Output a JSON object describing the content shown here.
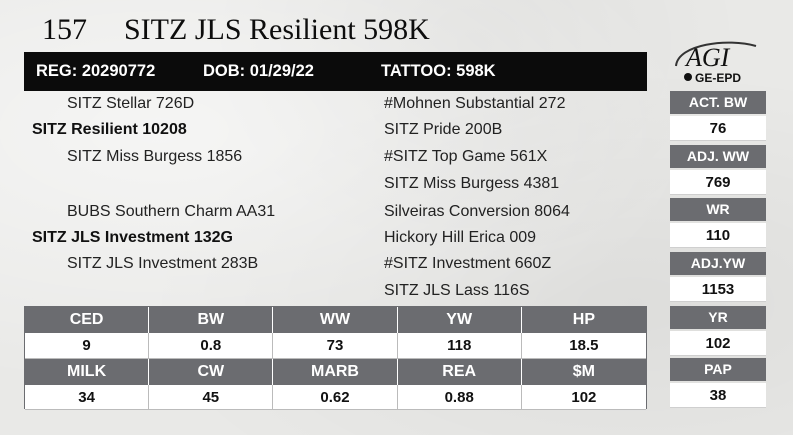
{
  "lot": {
    "number": "157",
    "name": "SITZ JLS Resilient 598K"
  },
  "registration": {
    "reg": "REG: 20290772",
    "dob": "DOB: 01/29/22",
    "tattoo": "TATTOO: 598K"
  },
  "logo": {
    "text_main": "AGI",
    "text_sub": "GE-EPD"
  },
  "pedigree": {
    "sire_sire": "SITZ Stellar 726D",
    "sire": "SITZ Resilient 10208",
    "sire_dam": "SITZ Miss Burgess 1856",
    "dam_sire": "BUBS Southern Charm AA31",
    "dam": "SITZ JLS Investment 132G",
    "dam_dam": "SITZ JLS Investment 283B",
    "right": [
      "#Mohnen Substantial 272",
      "SITZ Pride 200B",
      "#SITZ Top Game 561X",
      "SITZ Miss Burgess 4381",
      "Silveiras Conversion 8064",
      "Hickory Hill Erica 009",
      "#SITZ Investment 660Z",
      "SITZ JLS Lass 116S"
    ]
  },
  "performance": [
    {
      "label": "ACT. BW",
      "value": "76"
    },
    {
      "label": "ADJ. WW",
      "value": "769"
    },
    {
      "label": "WR",
      "value": "110"
    },
    {
      "label": "ADJ.YW",
      "value": "1153"
    },
    {
      "label": "YR",
      "value": "102"
    },
    {
      "label": "PAP",
      "value": "38"
    }
  ],
  "epd_row1": {
    "headers": [
      "CED",
      "BW",
      "WW",
      "YW",
      "HP"
    ],
    "values": [
      "9",
      "0.8",
      "73",
      "118",
      "18.5"
    ]
  },
  "epd_row2": {
    "headers": [
      "MILK",
      "CW",
      "MARB",
      "REA",
      "$M"
    ],
    "values": [
      "34",
      "45",
      "0.62",
      "0.88",
      "102"
    ]
  }
}
